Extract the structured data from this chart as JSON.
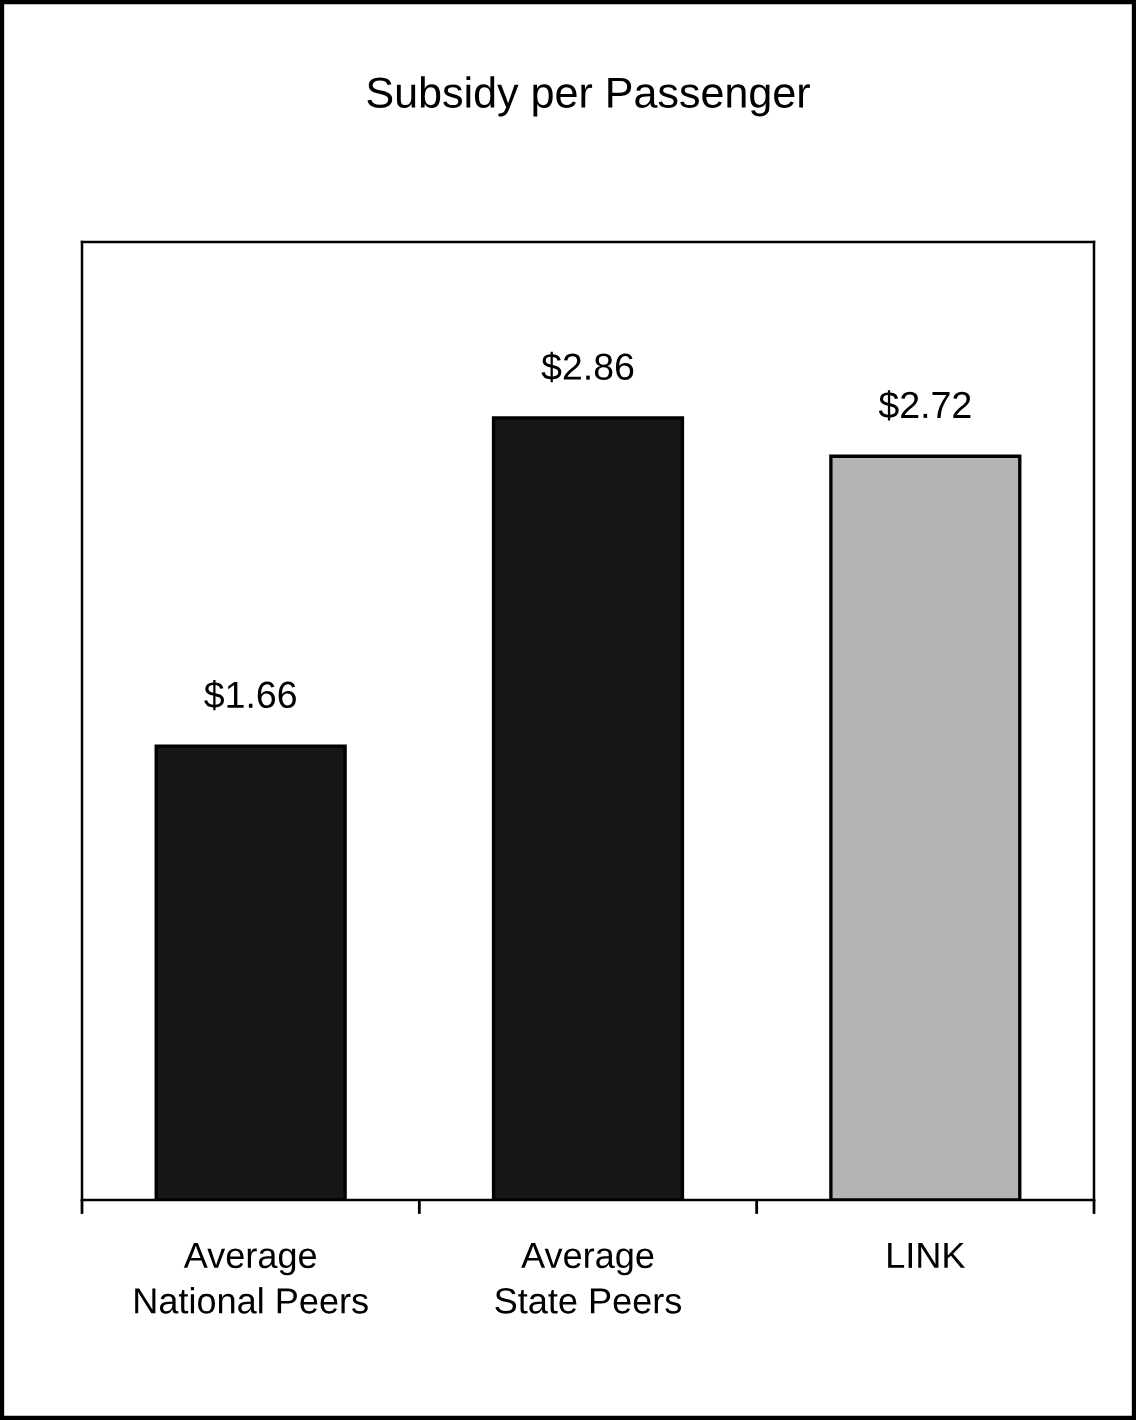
{
  "chart_data": {
    "type": "bar",
    "title": "Subsidy per Passenger",
    "categories": [
      "Average\nNational Peers",
      "Average\nState Peers",
      "LINK"
    ],
    "values": [
      1.66,
      2.86,
      2.72
    ],
    "colors": [
      "#161616",
      "#161616",
      "#b4b4b4"
    ],
    "value_labels": [
      "$1.66",
      "$2.86",
      "$2.72"
    ],
    "grid": false,
    "legend": false
  }
}
